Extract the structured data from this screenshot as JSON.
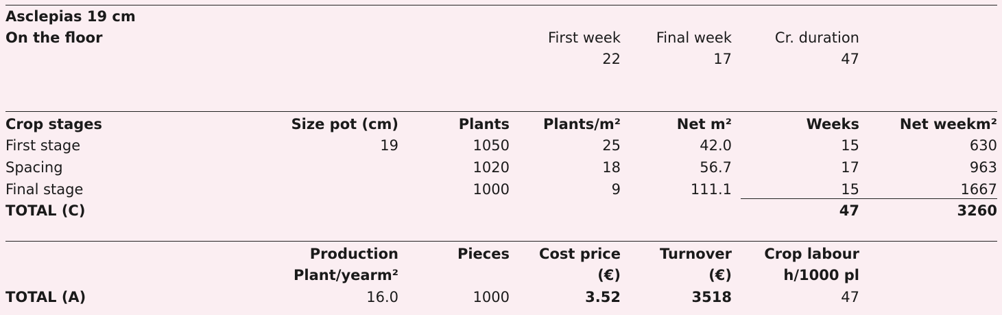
{
  "title": "Asclepias 19 cm",
  "subtitle": "On the floor",
  "weeks": {
    "first_week_label": "First week",
    "final_week_label": "Final week",
    "duration_label": "Cr. duration",
    "first_week": "22",
    "final_week": "17",
    "duration": "47"
  },
  "crop": {
    "headers": [
      "Crop stages",
      "Size pot (cm)",
      "Plants",
      "Plants/m²",
      "Net m²",
      "Weeks",
      "Net weekm²"
    ],
    "rows": [
      [
        "First stage",
        "19",
        "1050",
        "25",
        "42.0",
        "15",
        "630"
      ],
      [
        "Spacing",
        "",
        "1020",
        "18",
        "56.7",
        "17",
        "963"
      ],
      [
        "Final stage",
        "",
        "1000",
        "9",
        "111.1",
        "15",
        "1667"
      ]
    ],
    "total": [
      "TOTAL (C)",
      "",
      "",
      "",
      "",
      "47",
      "3260"
    ]
  },
  "production": {
    "header_line1": [
      "",
      "Production",
      "Pieces",
      "Cost price",
      "Turnover",
      "Crop labour"
    ],
    "header_line2": [
      "",
      "Plant/yearm²",
      "",
      "(€)",
      "(€)",
      "h/1000 pl"
    ],
    "total": [
      "TOTAL (A)",
      "16.0",
      "1000",
      "3.52",
      "3518",
      "47"
    ]
  }
}
